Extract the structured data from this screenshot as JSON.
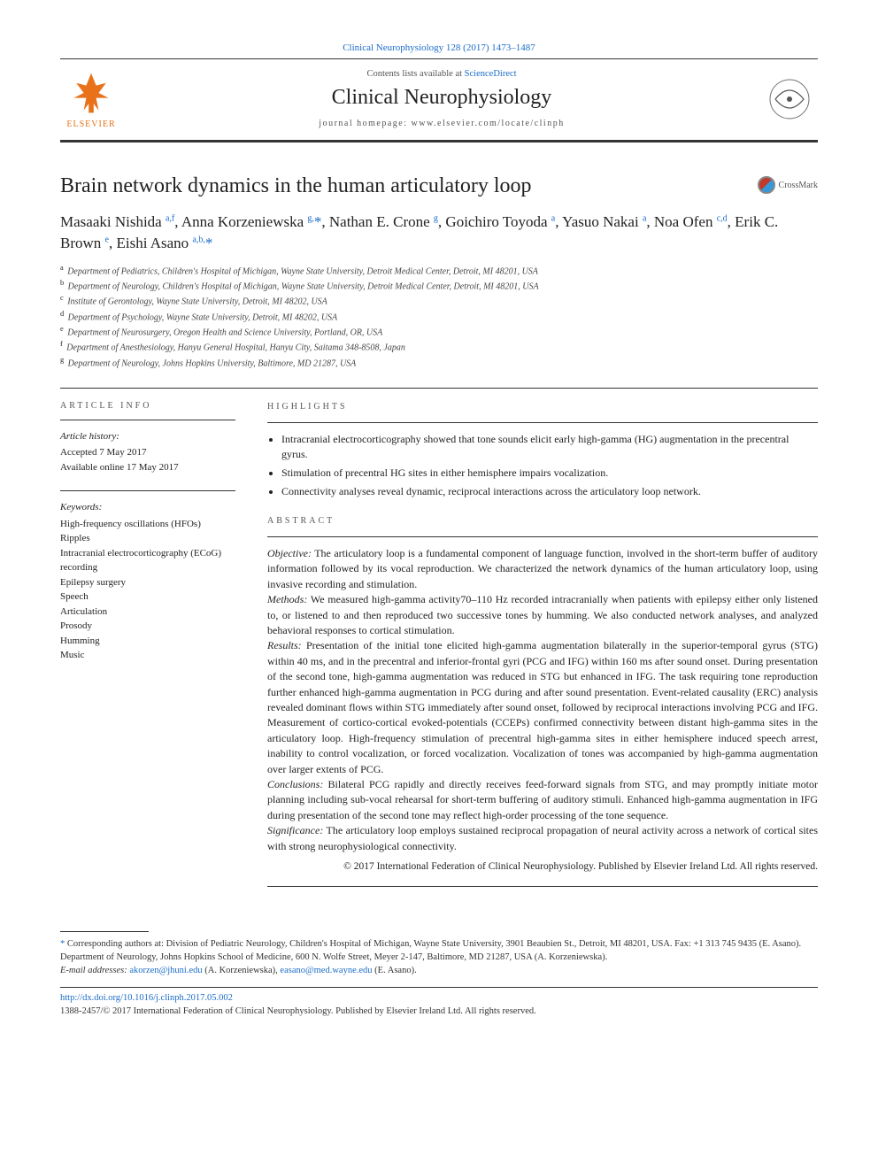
{
  "citation": "Clinical Neurophysiology 128 (2017) 1473–1487",
  "header": {
    "contents_prefix": "Contents lists available at ",
    "contents_link": "ScienceDirect",
    "journal_name": "Clinical Neurophysiology",
    "homepage_label": "journal homepage: www.elsevier.com/locate/clinph",
    "publisher": "ELSEVIER"
  },
  "crossmark_label": "CrossMark",
  "title": "Brain network dynamics in the human articulatory loop",
  "authors_html": "Masaaki Nishida <sup>a,f</sup>, Anna Korzeniewska <sup>g,</sup><a>*</a>, Nathan E. Crone <sup>g</sup>, Goichiro Toyoda <sup>a</sup>, Yasuo Nakai <sup>a</sup>, Noa Ofen <sup>c,d</sup>, Erik C. Brown <sup>e</sup>, Eishi Asano <sup>a,b,</sup><a>*</a>",
  "affiliations": [
    {
      "k": "a",
      "t": "Department of Pediatrics, Children's Hospital of Michigan, Wayne State University, Detroit Medical Center, Detroit, MI 48201, USA"
    },
    {
      "k": "b",
      "t": "Department of Neurology, Children's Hospital of Michigan, Wayne State University, Detroit Medical Center, Detroit, MI 48201, USA"
    },
    {
      "k": "c",
      "t": "Institute of Gerontology, Wayne State University, Detroit, MI 48202, USA"
    },
    {
      "k": "d",
      "t": "Department of Psychology, Wayne State University, Detroit, MI 48202, USA"
    },
    {
      "k": "e",
      "t": "Department of Neurosurgery, Oregon Health and Science University, Portland, OR, USA"
    },
    {
      "k": "f",
      "t": "Department of Anesthesiology, Hanyu General Hospital, Hanyu City, Saitama 348-8508, Japan"
    },
    {
      "k": "g",
      "t": "Department of Neurology, Johns Hopkins University, Baltimore, MD 21287, USA"
    }
  ],
  "info": {
    "heading": "ARTICLE INFO",
    "history_label": "Article history:",
    "accepted": "Accepted 7 May 2017",
    "online": "Available online 17 May 2017",
    "keywords_label": "Keywords:",
    "keywords": [
      "High-frequency oscillations (HFOs)",
      "Ripples",
      "Intracranial electrocorticography (ECoG) recording",
      "Epilepsy surgery",
      "Speech",
      "Articulation",
      "Prosody",
      "Humming",
      "Music"
    ]
  },
  "highlights": {
    "heading": "HIGHLIGHTS",
    "items": [
      "Intracranial electrocorticography showed that tone sounds elicit early high-gamma (HG) augmentation in the precentral gyrus.",
      "Stimulation of precentral HG sites in either hemisphere impairs vocalization.",
      "Connectivity analyses reveal dynamic, reciprocal interactions across the articulatory loop network."
    ]
  },
  "abstract": {
    "heading": "ABSTRACT",
    "paragraphs": [
      {
        "label": "Objective:",
        "text": " The articulatory loop is a fundamental component of language function, involved in the short-term buffer of auditory information followed by its vocal reproduction. We characterized the network dynamics of the human articulatory loop, using invasive recording and stimulation."
      },
      {
        "label": "Methods:",
        "text": " We measured high-gamma activity70–110 Hz recorded intracranially when patients with epilepsy either only listened to, or listened to and then reproduced two successive tones by humming. We also conducted network analyses, and analyzed behavioral responses to cortical stimulation."
      },
      {
        "label": "Results:",
        "text": " Presentation of the initial tone elicited high-gamma augmentation bilaterally in the superior-temporal gyrus (STG) within 40 ms, and in the precentral and inferior-frontal gyri (PCG and IFG) within 160 ms after sound onset. During presentation of the second tone, high-gamma augmentation was reduced in STG but enhanced in IFG. The task requiring tone reproduction further enhanced high-gamma augmentation in PCG during and after sound presentation. Event-related causality (ERC) analysis revealed dominant flows within STG immediately after sound onset, followed by reciprocal interactions involving PCG and IFG. Measurement of cortico-cortical evoked-potentials (CCEPs) confirmed connectivity between distant high-gamma sites in the articulatory loop. High-frequency stimulation of precentral high-gamma sites in either hemisphere induced speech arrest, inability to control vocalization, or forced vocalization. Vocalization of tones was accompanied by high-gamma augmentation over larger extents of PCG."
      },
      {
        "label": "Conclusions:",
        "text": " Bilateral PCG rapidly and directly receives feed-forward signals from STG, and may promptly initiate motor planning including sub-vocal rehearsal for short-term buffering of auditory stimuli. Enhanced high-gamma augmentation in IFG during presentation of the second tone may reflect high-order processing of the tone sequence."
      },
      {
        "label": "Significance:",
        "text": " The articulatory loop employs sustained reciprocal propagation of neural activity across a network of cortical sites with strong neurophysiological connectivity."
      }
    ],
    "copyright": "© 2017 International Federation of Clinical Neurophysiology. Published by Elsevier Ireland Ltd. All rights reserved."
  },
  "footer": {
    "corresponding": "Corresponding authors at: Division of Pediatric Neurology, Children's Hospital of Michigan, Wayne State University, 3901 Beaubien St., Detroit, MI 48201, USA. Fax: +1 313 745 9435 (E. Asano). Department of Neurology, Johns Hopkins School of Medicine, 600 N. Wolfe Street, Meyer 2-147, Baltimore, MD 21287, USA (A. Korzeniewska).",
    "email_label": "E-mail addresses:",
    "emails": [
      {
        "addr": "akorzen@jhuni.edu",
        "who": "(A. Korzeniewska)"
      },
      {
        "addr": "easano@med.wayne.edu",
        "who": "(E. Asano)"
      }
    ],
    "doi": "http://dx.doi.org/10.1016/j.clinph.2017.05.002",
    "issn": "1388-2457/© 2017 International Federation of Clinical Neurophysiology. Published by Elsevier Ireland Ltd. All rights reserved."
  },
  "colors": {
    "link": "#1a6cc7",
    "elsevier": "#e8711a",
    "rule": "#333333",
    "text": "#222222"
  }
}
